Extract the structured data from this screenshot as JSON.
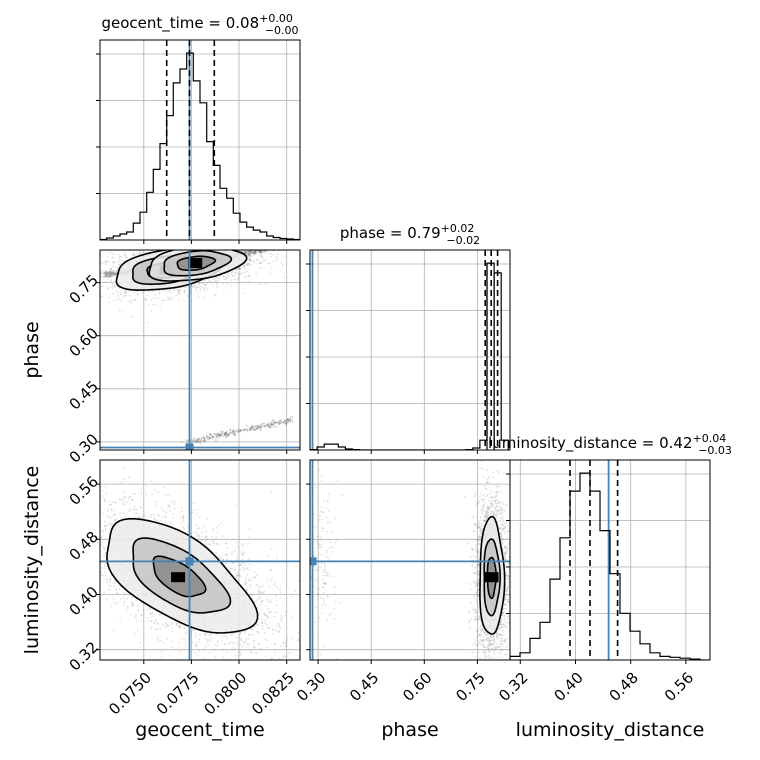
{
  "chart_data": {
    "type": "corner",
    "parameters": [
      "geocent_time",
      "phase",
      "luminosity_distance"
    ],
    "truths": {
      "geocent_time": 0.0774,
      "phase": 0.284,
      "luminosity_distance": 0.448
    },
    "colors": {
      "truth": "#4682b4",
      "hist": "#000000",
      "grid": "#b0b0b0",
      "points": "#7a7a7a"
    },
    "grid": true,
    "titles": [
      {
        "param": "geocent_time",
        "text": "geocent_time = 0.08",
        "sup": "+0.00",
        "sub": "−0.00"
      },
      {
        "param": "phase",
        "text": "phase = 0.79",
        "sup": "+0.02",
        "sub": "−0.02"
      },
      {
        "param": "luminosity_distance",
        "text": "luminosity_distance = 0.42",
        "sup": "+0.04",
        "sub": "−0.03"
      }
    ],
    "axes": {
      "geocent_time": {
        "label": "geocent_time",
        "range": [
          0.0727,
          0.0832
        ],
        "ticks": [
          0.075,
          0.0775,
          0.08,
          0.0825
        ],
        "tick_labels": [
          "0.0750",
          "0.0775",
          "0.0800",
          "0.0825"
        ]
      },
      "phase": {
        "label": "phase",
        "range": [
          0.277,
          0.842
        ],
        "ticks": [
          0.3,
          0.45,
          0.6,
          0.75
        ],
        "tick_labels": [
          "0.30",
          "0.45",
          "0.60",
          "0.75"
        ]
      },
      "luminosity_distance": {
        "label": "luminosity_distance",
        "range": [
          0.305,
          0.595
        ],
        "ticks": [
          0.32,
          0.4,
          0.48,
          0.56
        ],
        "tick_labels": [
          "0.32",
          "0.40",
          "0.48",
          "0.56"
        ]
      }
    },
    "histograms": {
      "geocent_time": {
        "edges": [
          0.0727,
          0.07305,
          0.0734,
          0.07375,
          0.0741,
          0.07445,
          0.0748,
          0.07515,
          0.0755,
          0.07585,
          0.0762,
          0.07655,
          0.0769,
          0.07725,
          0.0776,
          0.07795,
          0.0783,
          0.07865,
          0.079,
          0.07935,
          0.0797,
          0.08005,
          0.0804,
          0.08075,
          0.0811,
          0.08145,
          0.0818,
          0.08215,
          0.0825,
          0.08285,
          0.0832
        ],
        "counts": [
          0.5,
          2,
          4,
          6,
          8,
          17,
          28,
          48,
          71,
          97,
          125,
          158,
          172,
          188,
          160,
          138,
          99,
          75,
          52,
          42,
          27,
          18,
          13,
          10,
          8,
          4,
          2.5,
          1.5,
          1,
          0.5
        ],
        "quantiles": [
          0.0762,
          0.0774,
          0.0787
        ]
      },
      "phase": {
        "edges": [
          0.277,
          0.297,
          0.317,
          0.337,
          0.357,
          0.377,
          0.397,
          0.417,
          0.437,
          0.457,
          0.477,
          0.497,
          0.517,
          0.537,
          0.557,
          0.577,
          0.597,
          0.617,
          0.637,
          0.657,
          0.677,
          0.697,
          0.717,
          0.737,
          0.757,
          0.777,
          0.797,
          0.817,
          0.837
        ],
        "counts": [
          0.2,
          1.5,
          3,
          3,
          1.5,
          0.5,
          0.2,
          0,
          0,
          0,
          0,
          0,
          0,
          0,
          0,
          0,
          0,
          0,
          0,
          0,
          0,
          0,
          0.2,
          1,
          5,
          95,
          90,
          5
        ],
        "quantiles": [
          0.772,
          0.789,
          0.807
        ]
      },
      "luminosity_distance": {
        "edges": [
          0.305,
          0.3195,
          0.334,
          0.3485,
          0.363,
          0.3775,
          0.392,
          0.4065,
          0.421,
          0.4355,
          0.45,
          0.4645,
          0.479,
          0.4935,
          0.508,
          0.5225,
          0.537,
          0.5515,
          0.566,
          0.5805,
          0.595
        ],
        "counts": [
          2,
          4,
          12,
          21,
          45,
          68,
          94,
          104,
          94,
          72,
          48,
          26,
          16,
          9,
          4,
          2,
          1.5,
          1,
          0.5,
          0
        ],
        "quantiles": [
          0.392,
          0.421,
          0.461
        ]
      }
    },
    "contours": [
      {
        "x": "geocent_time",
        "y": "phase",
        "clusters": [
          {
            "center": [
              0.0762,
              0.786
            ],
            "sx": 0.0012,
            "sy": 0.025,
            "rho": 0.3,
            "n": 1500,
            "levels": [
              0.9,
              1.6,
              2.3
            ]
          },
          {
            "center": [
              0.0777,
              0.805
            ],
            "sx": 0.0011,
            "sy": 0.022,
            "rho": 0.3,
            "n": 1200,
            "levels": [
              0.9,
              1.6,
              2.3
            ]
          }
        ],
        "lines": [
          {
            "from": [
              0.0775,
              0.805
            ],
            "to": [
              0.0825,
              0.855
            ],
            "n": 450
          },
          {
            "from": [
              0.0772,
              0.298
            ],
            "to": [
              0.0828,
              0.362
            ],
            "n": 260
          },
          {
            "from": [
              0.0729,
              0.772
            ],
            "to": [
              0.0755,
              0.79
            ],
            "n": 250
          }
        ]
      },
      {
        "x": "geocent_time",
        "y": "luminosity_distance",
        "clusters": [
          {
            "center": [
              0.0768,
              0.425
            ],
            "sx": 0.0017,
            "sy": 0.036,
            "rho": -0.6,
            "n": 3000,
            "levels": [
              0.8,
              1.5,
              2.3
            ]
          }
        ],
        "lines": []
      },
      {
        "x": "phase",
        "y": "luminosity_distance",
        "clusters": [
          {
            "center": [
              0.79,
              0.425
            ],
            "sx": 0.015,
            "sy": 0.037,
            "rho": 0,
            "n": 2800,
            "levels": [
              0.8,
              1.5,
              2.3
            ]
          },
          {
            "center": [
              0.315,
              0.445
            ],
            "sx": 0.014,
            "sy": 0.038,
            "rho": 0,
            "n": 140,
            "levels": []
          }
        ],
        "lines": []
      }
    ]
  }
}
